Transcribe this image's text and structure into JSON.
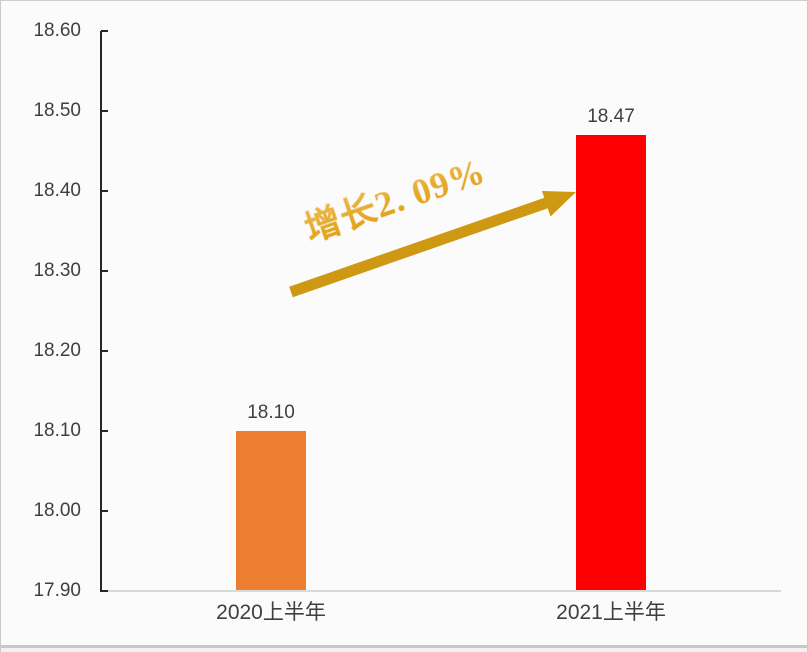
{
  "window": {
    "background": "#FBFBFB",
    "border_color": "#C9C9C9"
  },
  "chart_data": {
    "type": "bar",
    "title": "",
    "xlabel": "",
    "ylabel": "",
    "categories": [
      "2020上半年",
      "2021上半年"
    ],
    "values": [
      18.1,
      18.47
    ],
    "data_labels": [
      "18.10",
      "18.47"
    ],
    "bar_colors": [
      "#ED7D31",
      "#FF0000"
    ],
    "ylim": [
      17.9,
      18.6
    ],
    "ytick_step": 0.1,
    "ytick_labels": [
      "18.60",
      "18.50",
      "18.40",
      "18.30",
      "18.20",
      "18.10",
      "18.00",
      "17.90"
    ],
    "grid": false,
    "legend": false,
    "annotation": {
      "text": "增长2. 09%",
      "text_fill_light": "#FFEFB0",
      "text_fill_dark": "#EFA915",
      "arrow_color": "#CE9812"
    }
  },
  "axis": {
    "line_color": "#262626",
    "baseline_color": "#D9D9D9",
    "tick_text_color": "#3F3F3F",
    "label_text_color": "#404040"
  }
}
